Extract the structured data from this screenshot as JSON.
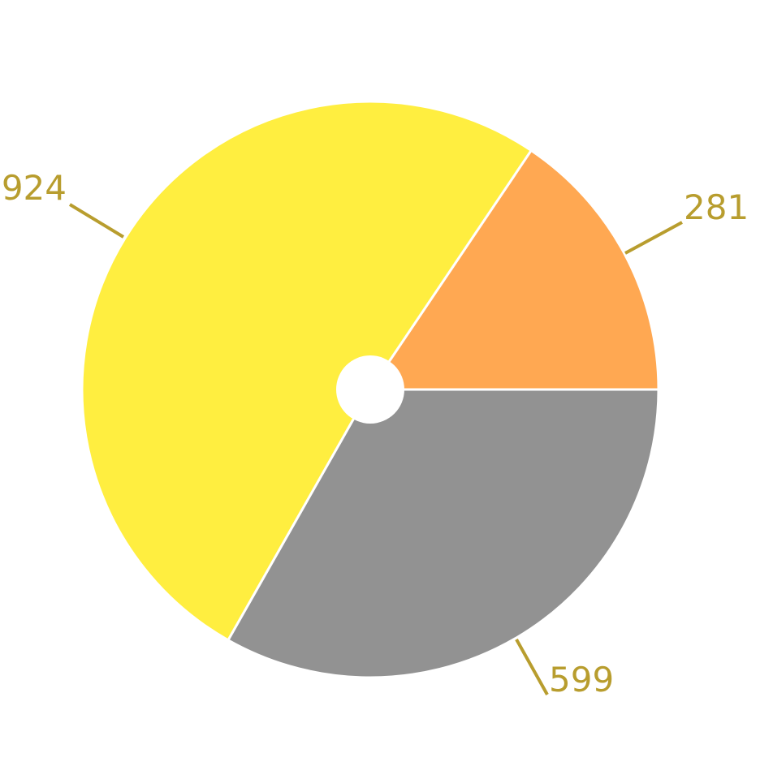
{
  "chart_data": {
    "type": "pie",
    "donut_hole": true,
    "start_angle_deg": 0,
    "direction": "counterclockwise",
    "slices": [
      {
        "value": 281,
        "label": "281",
        "color": "#ffa852"
      },
      {
        "value": 924,
        "label": "924",
        "color": "#ffee40"
      },
      {
        "value": 599,
        "label": "599",
        "color": "#929292"
      }
    ],
    "label_color": "#b89d2e",
    "separator_color": "#ffffff"
  }
}
